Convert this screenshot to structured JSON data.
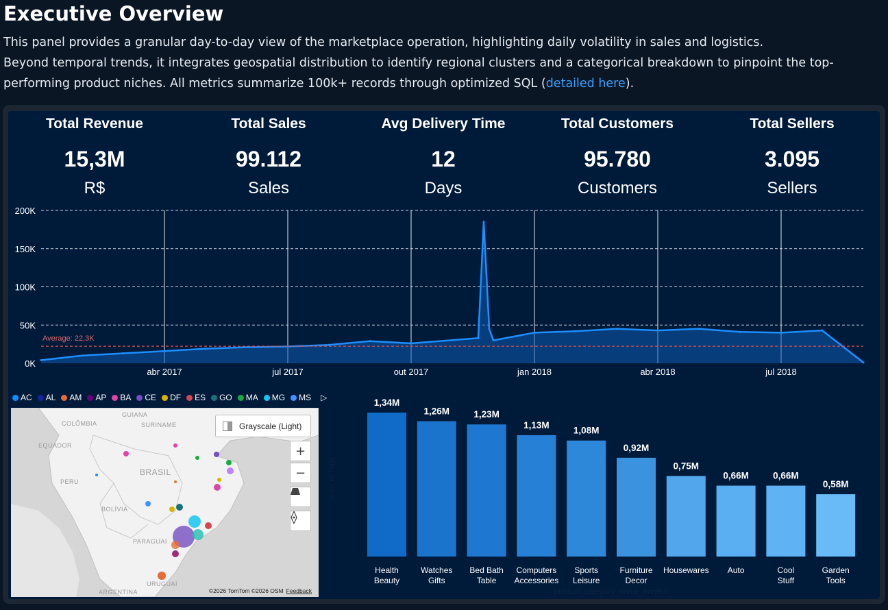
{
  "header": {
    "title": "Executive Overview",
    "desc_line1": "This panel provides a granular day-to-day view of the marketplace operation, highlighting daily volatility in sales and logistics.",
    "desc_line2": "Beyond temporal trends, it integrates geospatial distribution to identify regional clusters and a categorical breakdown to pinpoint the top-",
    "desc_line3_pre": "performing product niches. All metrics summarize 100k+ records through optimized SQL (",
    "desc_link": "detailed here",
    "desc_line3_post": ")."
  },
  "kpis": [
    {
      "label": "Total Revenue",
      "value": "15,3M",
      "unit": "R$"
    },
    {
      "label": "Total Sales",
      "value": "99.112",
      "unit": "Sales"
    },
    {
      "label": "Avg Delivery Time",
      "value": "12",
      "unit": "Days"
    },
    {
      "label": "Total Customers",
      "value": "95.780",
      "unit": "Customers"
    },
    {
      "label": "Total Sellers",
      "value": "3.095",
      "unit": "Sellers"
    }
  ],
  "legend": [
    {
      "code": "AC",
      "color": "#118dff"
    },
    {
      "code": "AL",
      "color": "#12239e"
    },
    {
      "code": "AM",
      "color": "#e66c37"
    },
    {
      "code": "AP",
      "color": "#6b007b"
    },
    {
      "code": "BA",
      "color": "#e044a7"
    },
    {
      "code": "CE",
      "color": "#744ec2"
    },
    {
      "code": "DF",
      "color": "#d9b300"
    },
    {
      "code": "ES",
      "color": "#d64550"
    },
    {
      "code": "GO",
      "color": "#197278"
    },
    {
      "code": "MA",
      "color": "#1aab40"
    },
    {
      "code": "MG",
      "color": "#15c6f4"
    },
    {
      "code": "MS",
      "color": "#4092ff"
    }
  ],
  "map": {
    "style_button": "Grayscale (Light)",
    "zoom_in": "+",
    "zoom_out": "−",
    "attribution": "©2026 TomTom  ©2026 OSM",
    "feedback": "Feedback",
    "labels": [
      "COLÔMBIA",
      "GUIANA",
      "SURINAME",
      "EQUADOR",
      "BRASIL",
      "PERU",
      "BOLÍVIA",
      "PARAGUAI",
      "URUGUAI",
      "ARGENTINA"
    ]
  },
  "chart_data": [
    {
      "type": "area",
      "title": "",
      "ylim": [
        0,
        200000
      ],
      "y_ticks": [
        "0K",
        "50K",
        "100K",
        "150K",
        "200K"
      ],
      "x_ticks": [
        "abr 2017",
        "jul 2017",
        "out 2017",
        "jan 2018",
        "abr 2018",
        "jul 2018"
      ],
      "x_range": [
        "2017-01",
        "2018-09"
      ],
      "average_label": "Average: 22,3K",
      "average": 22300,
      "grid": true,
      "series": [
        {
          "x": [
            "2017-01",
            "2017-02",
            "2017-03",
            "2017-04",
            "2017-05",
            "2017-06",
            "2017-07",
            "2017-08",
            "2017-09",
            "2017-10",
            "2017-11-20",
            "2017-11-24",
            "2017-11-28",
            "2017-12",
            "2018-01",
            "2018-02",
            "2018-03",
            "2018-04",
            "2018-05",
            "2018-06",
            "2018-07",
            "2018-08",
            "2018-09"
          ],
          "values": [
            4000,
            10000,
            13000,
            16000,
            19000,
            21000,
            22000,
            24000,
            29000,
            26000,
            33000,
            185000,
            45000,
            30000,
            40000,
            42000,
            45000,
            43000,
            45000,
            41000,
            40000,
            43000,
            1000
          ]
        }
      ]
    },
    {
      "type": "bar",
      "xlabel": "product_category_name_english",
      "ylabel": "Sum of Total",
      "categories": [
        "Health Beauty",
        "Watches Gifts",
        "Bed Bath Table",
        "Computers Accessories",
        "Sports Leisure",
        "Furniture Decor",
        "Housewares",
        "Auto",
        "Cool Stuff",
        "Garden Tools"
      ],
      "values": [
        1.34,
        1.26,
        1.23,
        1.13,
        1.08,
        0.92,
        0.75,
        0.66,
        0.66,
        0.58
      ],
      "labels": [
        "1,34M",
        "1,26M",
        "1,23M",
        "1,13M",
        "1,08M",
        "0,92M",
        "0,75M",
        "0,66M",
        "0,66M",
        "0,58M"
      ],
      "colors": [
        "#0f6ac8",
        "#1a74cc",
        "#1e78d2",
        "#2580d6",
        "#2d88da",
        "#3b93df",
        "#52a6ec",
        "#5aaff2",
        "#5fb3f4",
        "#68bbf7"
      ]
    }
  ]
}
